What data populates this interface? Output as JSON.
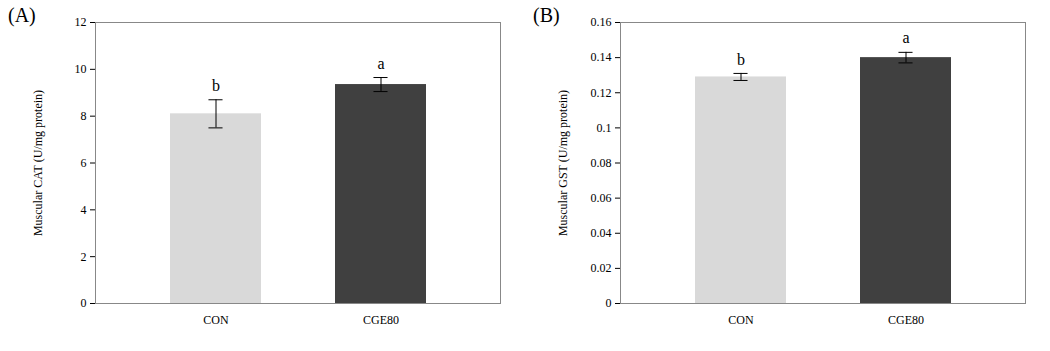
{
  "chart_data": [
    {
      "type": "bar",
      "title": "(A)",
      "categories": [
        "CON",
        "CGE80"
      ],
      "values": [
        8.1,
        9.35
      ],
      "errors": [
        0.6,
        0.3
      ],
      "significance_labels": [
        "b",
        "a"
      ],
      "colors": [
        "#d9d9d9",
        "#404040"
      ],
      "ylabel": "Muscular CAT (U/mg protein)",
      "ylim": [
        0,
        12
      ],
      "yticks": [
        0,
        2,
        4,
        6,
        8,
        10,
        12
      ]
    },
    {
      "type": "bar",
      "title": "(B)",
      "categories": [
        "CON",
        "CGE80"
      ],
      "values": [
        0.129,
        0.14
      ],
      "errors": [
        0.002,
        0.003
      ],
      "significance_labels": [
        "b",
        "a"
      ],
      "colors": [
        "#d9d9d9",
        "#404040"
      ],
      "ylabel": "Muscular GST (U/mg protein)",
      "ylim": [
        0,
        0.16
      ],
      "yticks": [
        0,
        0.02,
        0.04,
        0.06,
        0.08,
        0.1,
        0.12,
        0.14,
        0.16
      ]
    }
  ]
}
